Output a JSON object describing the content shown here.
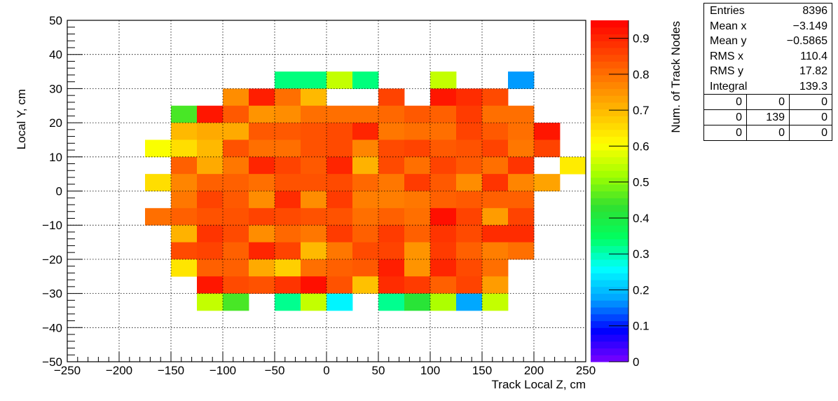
{
  "chart_data": {
    "type": "heatmap",
    "xlabel": "Track Local Z, cm",
    "ylabel": "Local Y, cm",
    "zlabel": "Num. of Track Nodes",
    "xlim": [
      -250,
      250
    ],
    "ylim": [
      -50,
      50
    ],
    "zlim": [
      0,
      0.95
    ],
    "x_ticks": [
      "−250",
      "−200",
      "−150",
      "−100",
      "−50",
      "0",
      "50",
      "100",
      "150",
      "200",
      "250"
    ],
    "y_ticks": [
      "−50",
      "−40",
      "−30",
      "−20",
      "−10",
      "0",
      "10",
      "20",
      "30",
      "40",
      "50"
    ],
    "z_ticks": [
      "0",
      "0.1",
      "0.2",
      "0.3",
      "0.4",
      "0.5",
      "0.6",
      "0.7",
      "0.8",
      "0.9"
    ],
    "grid": true,
    "palette": [
      "#7b00ff",
      "#0000ff",
      "#00a0ff",
      "#00ffff",
      "#00ff60",
      "#30e030",
      "#a0ff00",
      "#ffff00",
      "#ffc000",
      "#ff8000",
      "#ff4000",
      "#ff0000"
    ],
    "x_bin_start": -200,
    "x_bin_width": 25,
    "y_bin_top": 35,
    "y_bin_height": 5,
    "cells": [
      [
        null,
        null,
        null,
        null,
        null,
        null,
        0.33,
        0.33,
        0.55,
        0.33,
        null,
        null,
        0.55,
        null,
        null,
        0.17,
        null,
        null,
        null,
        null,
        null,
        null
      ],
      [
        null,
        null,
        null,
        null,
        0.76,
        0.91,
        0.8,
        0.7,
        null,
        null,
        0.86,
        null,
        0.92,
        0.89,
        0.85,
        null,
        null,
        null,
        null,
        null,
        null,
        null
      ],
      [
        null,
        null,
        0.45,
        0.92,
        0.83,
        0.75,
        0.76,
        0.8,
        0.8,
        0.8,
        0.81,
        0.83,
        0.82,
        0.87,
        0.8,
        0.8,
        null,
        null,
        null,
        null,
        null,
        null
      ],
      [
        null,
        null,
        0.7,
        0.72,
        0.72,
        0.83,
        0.83,
        0.84,
        0.85,
        0.9,
        0.79,
        0.8,
        0.8,
        0.86,
        0.83,
        0.8,
        0.92,
        null,
        null,
        null,
        null,
        null
      ],
      [
        null,
        0.6,
        0.65,
        0.7,
        0.84,
        0.8,
        0.8,
        0.84,
        0.85,
        0.77,
        0.85,
        0.86,
        0.83,
        0.84,
        0.86,
        0.79,
        0.86,
        null,
        null,
        null,
        null,
        null
      ],
      [
        null,
        null,
        0.82,
        0.72,
        0.79,
        0.9,
        0.86,
        0.83,
        0.9,
        0.71,
        0.85,
        0.8,
        0.86,
        0.83,
        0.8,
        0.88,
        null,
        0.63,
        null,
        null,
        null,
        null
      ],
      [
        null,
        0.65,
        0.77,
        0.82,
        0.82,
        0.8,
        0.84,
        0.84,
        0.85,
        0.81,
        0.79,
        0.87,
        0.83,
        0.76,
        0.88,
        0.77,
        0.73,
        null,
        null,
        null,
        null,
        null
      ],
      [
        null,
        null,
        0.79,
        0.86,
        0.83,
        0.76,
        0.89,
        0.76,
        0.87,
        0.78,
        0.78,
        0.79,
        0.82,
        0.83,
        0.82,
        0.82,
        null,
        null,
        null,
        null,
        null,
        null
      ],
      [
        null,
        0.8,
        0.82,
        0.84,
        0.84,
        0.86,
        0.85,
        0.84,
        0.84,
        0.8,
        0.82,
        0.8,
        0.93,
        0.86,
        0.74,
        0.86,
        null,
        null,
        null,
        null,
        null,
        null
      ],
      [
        null,
        null,
        0.71,
        0.88,
        0.85,
        0.76,
        0.81,
        0.79,
        0.87,
        0.82,
        0.87,
        0.82,
        0.88,
        0.85,
        0.89,
        0.89,
        null,
        null,
        null,
        null,
        null,
        null
      ],
      [
        null,
        null,
        0.85,
        0.86,
        0.82,
        0.9,
        0.86,
        0.7,
        0.79,
        0.85,
        0.86,
        0.75,
        0.87,
        0.82,
        0.78,
        0.8,
        null,
        null,
        null,
        null,
        null,
        null
      ],
      [
        null,
        null,
        0.64,
        0.82,
        0.82,
        0.72,
        0.67,
        0.8,
        0.82,
        0.83,
        0.91,
        0.75,
        0.9,
        0.85,
        0.8,
        null,
        null,
        null,
        null,
        null,
        null,
        null
      ],
      [
        null,
        null,
        null,
        0.92,
        0.85,
        0.84,
        0.88,
        0.93,
        0.84,
        0.69,
        0.89,
        0.87,
        0.82,
        0.86,
        0.74,
        null,
        null,
        null,
        null,
        null,
        null,
        null
      ],
      [
        null,
        null,
        null,
        0.55,
        0.45,
        null,
        0.32,
        0.55,
        0.25,
        null,
        0.32,
        0.42,
        0.53,
        0.18,
        0.55,
        null,
        null,
        null,
        null,
        null,
        null,
        null
      ]
    ]
  },
  "stats": {
    "rows": [
      {
        "label": "Entries",
        "value": "8396"
      },
      {
        "label": "Mean x",
        "value": "−3.149"
      },
      {
        "label": "Mean y",
        "value": "−0.5865"
      },
      {
        "label": "RMS x",
        "value": "110.4"
      },
      {
        "label": "RMS y",
        "value": "17.82"
      },
      {
        "label": "Integral",
        "value": "139.3"
      }
    ],
    "grid": [
      [
        "0",
        "0",
        "0"
      ],
      [
        "0",
        "139",
        "0"
      ],
      [
        "0",
        "0",
        "0"
      ]
    ]
  }
}
